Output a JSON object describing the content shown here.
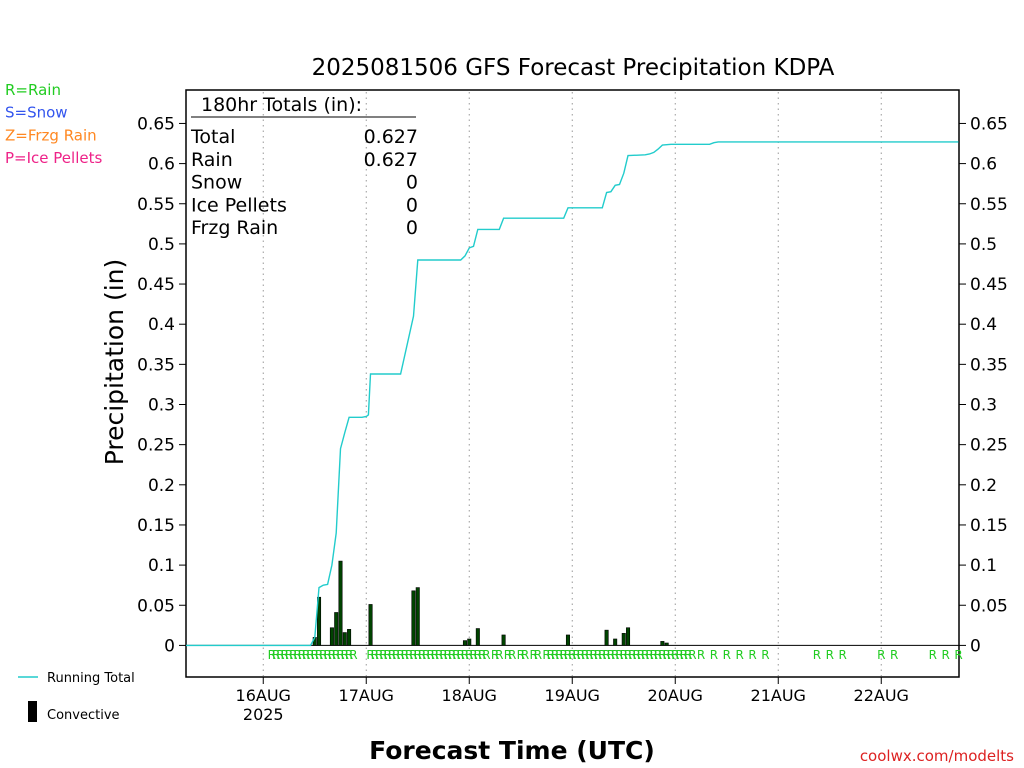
{
  "title": "2025081506 GFS Forecast Precipitation KDPA",
  "legend_types": [
    {
      "label": "R=Rain",
      "color": "#22cc22"
    },
    {
      "label": "S=Snow",
      "color": "#3355ee"
    },
    {
      "label": "Z=Frzg Rain",
      "color": "#ff8822"
    },
    {
      "label": "P=Ice Pellets",
      "color": "#ee2288"
    }
  ],
  "totals": {
    "heading": "180hr Totals (in):",
    "rows": [
      {
        "label": "Total",
        "value": "0.627"
      },
      {
        "label": "Rain",
        "value": "0.627"
      },
      {
        "label": "Snow",
        "value": "0"
      },
      {
        "label": "Ice Pellets",
        "value": "0"
      },
      {
        "label": "Frzg Rain",
        "value": "0"
      }
    ]
  },
  "bottom_legend": {
    "running_total": "Running Total",
    "convective": "Convective",
    "running_total_color": "#22cccc",
    "convective_color": "#000000"
  },
  "credit": "coolwx.com/modelts",
  "credit_color": "#dd2222",
  "chart_data": {
    "type": "bar",
    "ylabel": "Precipitation (in)",
    "xlabel": "Forecast Time (UTC)",
    "ylim": [
      0,
      0.68
    ],
    "yticks": [
      "0",
      "0.05",
      "0.1",
      "0.15",
      "0.2",
      "0.25",
      "0.3",
      "0.35",
      "0.4",
      "0.45",
      "0.5",
      "0.55",
      "0.6",
      "0.65"
    ],
    "ytick_values": [
      0,
      0.05,
      0.1,
      0.15,
      0.2,
      0.25,
      0.3,
      0.35,
      0.4,
      0.45,
      0.5,
      0.55,
      0.6,
      0.65
    ],
    "xlim_hours": [
      0,
      180
    ],
    "xticks": [
      {
        "hour": 18,
        "label": "16AUG",
        "sub": "2025"
      },
      {
        "hour": 42,
        "label": "17AUG"
      },
      {
        "hour": 66,
        "label": "18AUG"
      },
      {
        "hour": 90,
        "label": "19AUG"
      },
      {
        "hour": 114,
        "label": "20AUG"
      },
      {
        "hour": 138,
        "label": "21AUG"
      },
      {
        "hour": 162,
        "label": "22AUG"
      }
    ],
    "grid": "vertical dotted at day boundaries",
    "bars": [
      {
        "hour": 30,
        "value": 0.01
      },
      {
        "hour": 31,
        "value": 0.06
      },
      {
        "hour": 34,
        "value": 0.022
      },
      {
        "hour": 35,
        "value": 0.041
      },
      {
        "hour": 36,
        "value": 0.105
      },
      {
        "hour": 37,
        "value": 0.016
      },
      {
        "hour": 38,
        "value": 0.02
      },
      {
        "hour": 43,
        "value": 0.051
      },
      {
        "hour": 53,
        "value": 0.068
      },
      {
        "hour": 54,
        "value": 0.072
      },
      {
        "hour": 65,
        "value": 0.006
      },
      {
        "hour": 66,
        "value": 0.008
      },
      {
        "hour": 68,
        "value": 0.021
      },
      {
        "hour": 74,
        "value": 0.013
      },
      {
        "hour": 89,
        "value": 0.013
      },
      {
        "hour": 98,
        "value": 0.019
      },
      {
        "hour": 100,
        "value": 0.008
      },
      {
        "hour": 102,
        "value": 0.015
      },
      {
        "hour": 103,
        "value": 0.022
      },
      {
        "hour": 111,
        "value": 0.005
      },
      {
        "hour": 112,
        "value": 0.003
      }
    ],
    "running_total": {
      "name": "Running Total",
      "points": [
        [
          0,
          0
        ],
        [
          29,
          0
        ],
        [
          30,
          0.01
        ],
        [
          31,
          0.072
        ],
        [
          32,
          0.075
        ],
        [
          33,
          0.076
        ],
        [
          34,
          0.1
        ],
        [
          35,
          0.14
        ],
        [
          36,
          0.245
        ],
        [
          37,
          0.265
        ],
        [
          38,
          0.284
        ],
        [
          41,
          0.284
        ],
        [
          42,
          0.285
        ],
        [
          42.5,
          0.287
        ],
        [
          43,
          0.338
        ],
        [
          47,
          0.338
        ],
        [
          50,
          0.338
        ],
        [
          53,
          0.41
        ],
        [
          54,
          0.48
        ],
        [
          64,
          0.48
        ],
        [
          65,
          0.485
        ],
        [
          66,
          0.495
        ],
        [
          67,
          0.497
        ],
        [
          68,
          0.518
        ],
        [
          73,
          0.518
        ],
        [
          74,
          0.532
        ],
        [
          88,
          0.532
        ],
        [
          89,
          0.545
        ],
        [
          97,
          0.545
        ],
        [
          98,
          0.564
        ],
        [
          99,
          0.565
        ],
        [
          100,
          0.573
        ],
        [
          101,
          0.574
        ],
        [
          102,
          0.588
        ],
        [
          103,
          0.61
        ],
        [
          107,
          0.611
        ],
        [
          108,
          0.612
        ],
        [
          109,
          0.614
        ],
        [
          110,
          0.618
        ],
        [
          111,
          0.623
        ],
        [
          113,
          0.624
        ],
        [
          122,
          0.624
        ],
        [
          123,
          0.626
        ],
        [
          124,
          0.627
        ],
        [
          180,
          0.627
        ]
      ]
    },
    "precip_type_hours": [
      20,
      21,
      22,
      23,
      24,
      25,
      26,
      27,
      28,
      29,
      30,
      31,
      32,
      33,
      34,
      35,
      36,
      37,
      38,
      39,
      43,
      44,
      45,
      46,
      47,
      48,
      49,
      50,
      51,
      52,
      53,
      54,
      55,
      56,
      57,
      58,
      59,
      60,
      61,
      62,
      63,
      64,
      65,
      66,
      67,
      68,
      69,
      70,
      72,
      73,
      75,
      76,
      78,
      79,
      81,
      82,
      84,
      85,
      86,
      87,
      88,
      89,
      90,
      91,
      92,
      93,
      94,
      95,
      96,
      97,
      98,
      99,
      100,
      101,
      102,
      103,
      104,
      105,
      106,
      107,
      108,
      109,
      110,
      111,
      112,
      113,
      114,
      115,
      116,
      117,
      118,
      120,
      123,
      126,
      129,
      132,
      135,
      147,
      150,
      153,
      162,
      165,
      174,
      177,
      180
    ],
    "precip_type_letter": "R"
  }
}
